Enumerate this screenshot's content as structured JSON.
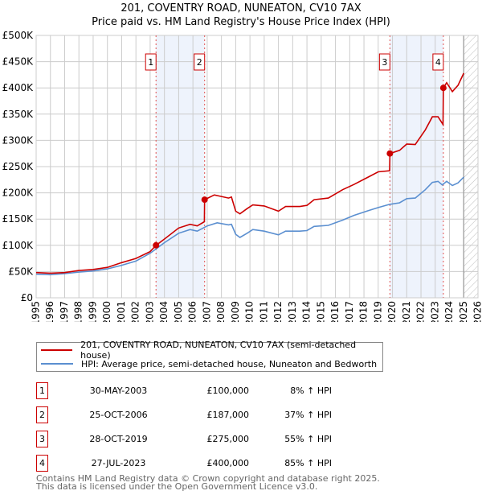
{
  "title": "201, COVENTRY ROAD, NUNEATON, CV10 7AX",
  "subtitle": "Price paid vs. HM Land Registry's House Price Index (HPI)",
  "colors": {
    "property": "#cc0000",
    "hpi": "#5b8fd0",
    "shade": "#eef3fc"
  },
  "chart_data": {
    "type": "line",
    "xlim": [
      1995,
      2026
    ],
    "ylim": [
      0,
      500000
    ],
    "yticks": [
      0,
      50000,
      100000,
      150000,
      200000,
      250000,
      300000,
      350000,
      400000,
      450000,
      500000
    ],
    "ytick_labels": [
      "£0",
      "£50K",
      "£100K",
      "£150K",
      "£200K",
      "£250K",
      "£300K",
      "£350K",
      "£400K",
      "£450K",
      "£500K"
    ],
    "xticks": [
      "1995",
      "1996",
      "1997",
      "1998",
      "1999",
      "2000",
      "2001",
      "2002",
      "2003",
      "2004",
      "2005",
      "2006",
      "2007",
      "2008",
      "2009",
      "2010",
      "2011",
      "2012",
      "2013",
      "2014",
      "2015",
      "2016",
      "2017",
      "2018",
      "2019",
      "2020",
      "2021",
      "2022",
      "2023",
      "2024",
      "2025",
      "2026"
    ],
    "grid": true,
    "forecast_from": 2025,
    "series": [
      {
        "name": "201, COVENTRY ROAD, NUNEATON, CV10 7AX (semi-detached house)",
        "color": "#cc0000",
        "x": [
          1995,
          1996,
          1997,
          1998,
          1999,
          2000,
          2001,
          2002,
          2003,
          2003.41,
          2004,
          2005,
          2005.8,
          2006.3,
          2006.8,
          2006.82,
          2007.5,
          2008.5,
          2008.7,
          2009,
          2009.3,
          2009.8,
          2010.2,
          2011,
          2012,
          2012.5,
          2013.5,
          2014,
          2014.5,
          2015.5,
          2016.5,
          2017.3,
          2018.3,
          2019,
          2019.8,
          2019.82,
          2020.5,
          2021,
          2021.6,
          2022.3,
          2022.8,
          2023.2,
          2023.55,
          2023.57,
          2023.8,
          2024.2,
          2024.6,
          2025
        ],
        "y": [
          48000,
          47000,
          48000,
          52000,
          54000,
          58000,
          67000,
          75000,
          88000,
          100000,
          112000,
          133000,
          140000,
          137000,
          145000,
          187000,
          196000,
          190000,
          192000,
          165000,
          160000,
          170000,
          177000,
          175000,
          165000,
          174000,
          174000,
          176000,
          187000,
          190000,
          206000,
          216000,
          230000,
          240000,
          242000,
          275000,
          281000,
          293000,
          292000,
          320000,
          345000,
          345000,
          330000,
          400000,
          410000,
          393000,
          405000,
          428000
        ]
      },
      {
        "name": "HPI: Average price, semi-detached house, Nuneaton and Bedworth",
        "color": "#5b8fd0",
        "x": [
          1995,
          1996,
          1997,
          1998,
          1999,
          2000,
          2001,
          2002,
          2003,
          2003.41,
          2004,
          2005,
          2005.8,
          2006.3,
          2007,
          2007.7,
          2008.5,
          2008.7,
          2009,
          2009.3,
          2009.8,
          2010.2,
          2011,
          2012,
          2012.5,
          2013.5,
          2014,
          2014.5,
          2015.5,
          2016.5,
          2017.3,
          2018.3,
          2019,
          2019.8,
          2020.5,
          2021,
          2021.6,
          2022.3,
          2022.8,
          2023.2,
          2023.5,
          2023.8,
          2024.2,
          2024.6,
          2025
        ],
        "y": [
          45000,
          44000,
          46000,
          49000,
          51000,
          55000,
          62000,
          70000,
          85000,
          93000,
          105000,
          123000,
          130000,
          127000,
          137000,
          143000,
          139000,
          140000,
          121000,
          115000,
          123000,
          130000,
          127000,
          120000,
          127000,
          127000,
          128000,
          136000,
          138000,
          148000,
          157000,
          166000,
          172000,
          178000,
          181000,
          189000,
          190000,
          206000,
          220000,
          222000,
          215000,
          222000,
          214000,
          219000,
          230000
        ]
      }
    ],
    "sales": [
      {
        "id": "1",
        "x": 2003.41,
        "y": 100000
      },
      {
        "id": "2",
        "x": 2006.82,
        "y": 187000
      },
      {
        "id": "3",
        "x": 2019.82,
        "y": 275000
      },
      {
        "id": "4",
        "x": 2023.57,
        "y": 400000
      }
    ],
    "shaded": [
      [
        2003.41,
        2006.82
      ],
      [
        2019.82,
        2023.57
      ]
    ]
  },
  "legend": {
    "property": "201, COVENTRY ROAD, NUNEATON, CV10 7AX (semi-detached house)",
    "hpi": "HPI: Average price, semi-detached house, Nuneaton and Bedworth"
  },
  "transactions": [
    {
      "num": "1",
      "date": "30-MAY-2003",
      "price": "£100,000",
      "hpi": "8% ↑ HPI"
    },
    {
      "num": "2",
      "date": "25-OCT-2006",
      "price": "£187,000",
      "hpi": "37% ↑ HPI"
    },
    {
      "num": "3",
      "date": "28-OCT-2019",
      "price": "£275,000",
      "hpi": "55% ↑ HPI"
    },
    {
      "num": "4",
      "date": "27-JUL-2023",
      "price": "£400,000",
      "hpi": "85% ↑ HPI"
    }
  ],
  "footer": {
    "line1": "Contains HM Land Registry data © Crown copyright and database right 2025.",
    "line2": "This data is licensed under the Open Government Licence v3.0."
  }
}
